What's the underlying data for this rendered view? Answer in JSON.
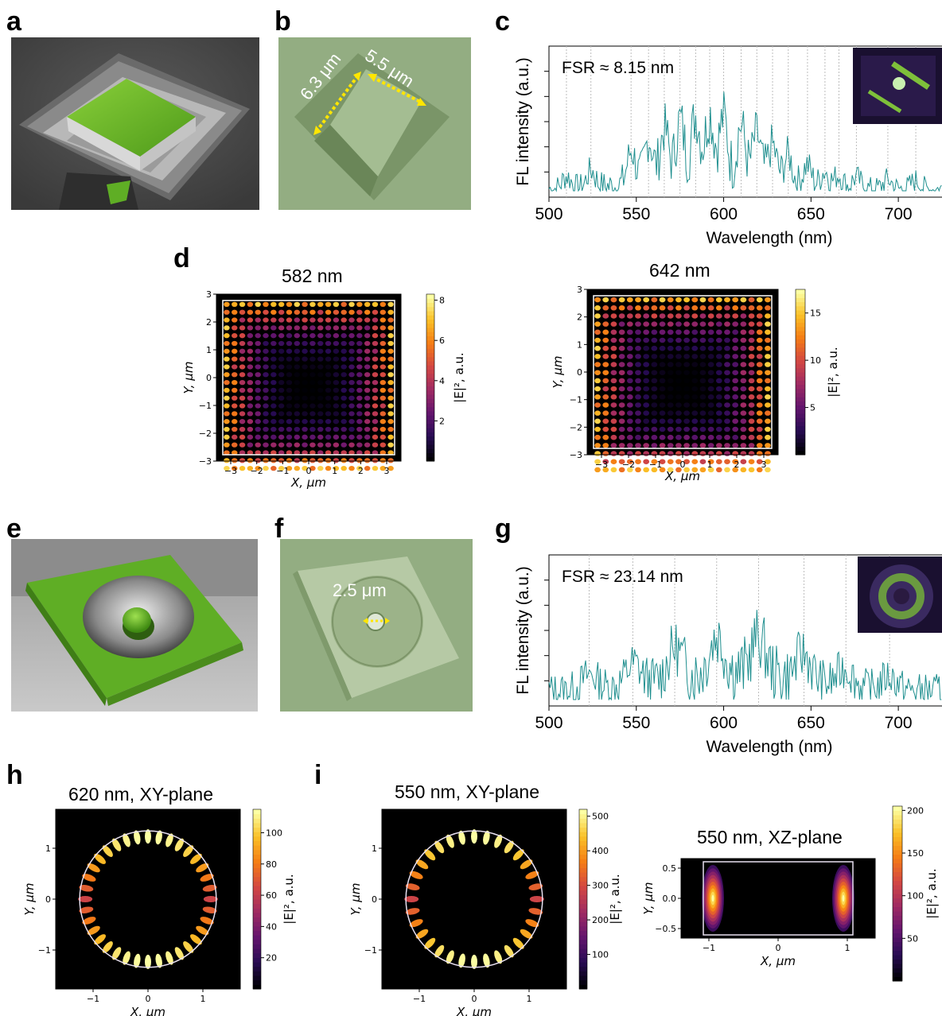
{
  "panel_labels": {
    "a": "a",
    "b": "b",
    "c": "c",
    "d": "d",
    "e": "e",
    "f": "f",
    "g": "g",
    "h": "h",
    "i": "i"
  },
  "images": {
    "b_dim_left": "6.3 μm",
    "b_dim_right": "5.5 μm",
    "f_dim": "2.5 μm"
  },
  "colors": {
    "sem_green": "#6fbf2a",
    "micro_green": "#93ad82",
    "spectrum": "#1f8f8f",
    "frame": "#ffffff"
  },
  "chart_data": [
    {
      "id": "c",
      "type": "line",
      "annotation": "FSR ≈ 8.15 nm",
      "xlabel": "Wavelength (nm)",
      "ylabel": "FL intensity (a.u.)",
      "xticks": [
        "500",
        "550",
        "600",
        "650",
        "700"
      ],
      "xlim": [
        500,
        725
      ],
      "peaks": [
        510,
        524,
        547,
        557,
        566,
        575,
        584,
        592,
        600,
        610,
        619,
        628,
        637,
        648,
        658,
        666,
        676,
        694,
        710
      ],
      "series": [
        {
          "values_envelope_center": 590,
          "values_envelope_width": 50,
          "max": 1.0
        }
      ]
    },
    {
      "id": "d1",
      "type": "heatmap",
      "title": "582 nm",
      "xlabel": "X, μm",
      "ylabel": "Y, μm",
      "cbar_label": "|E|², a.u.",
      "xticks": [
        "−3",
        "−2",
        "−1",
        "0",
        "1",
        "2",
        "3"
      ],
      "yticks": [
        "3",
        "2",
        "1",
        "0",
        "−1",
        "−2",
        "−3"
      ],
      "cbar_ticks": [
        "8",
        "6",
        "4",
        "2"
      ],
      "cbar_max": 8.3
    },
    {
      "id": "d2",
      "type": "heatmap",
      "title": "642 nm",
      "xlabel": "X, μm",
      "ylabel": "Y, μm",
      "cbar_label": "|E|², a.u.",
      "xticks": [
        "−3",
        "−2",
        "−1",
        "0",
        "1",
        "2",
        "3"
      ],
      "yticks": [
        "3",
        "2",
        "1",
        "0",
        "−1",
        "−2",
        "−3"
      ],
      "cbar_ticks": [
        "15",
        "10",
        "5"
      ],
      "cbar_max": 17.5
    },
    {
      "id": "g",
      "type": "line",
      "annotation": "FSR ≈ 23.14 nm",
      "xlabel": "Wavelength (nm)",
      "ylabel": "FL intensity (a.u.)",
      "xticks": [
        "500",
        "550",
        "600",
        "650",
        "700"
      ],
      "xlim": [
        500,
        725
      ],
      "peaks": [
        523,
        548,
        572,
        596,
        620,
        646,
        670,
        695
      ]
    },
    {
      "id": "h",
      "type": "heatmap",
      "title": "620 nm, XY-plane",
      "xlabel": "X, μm",
      "ylabel": "Y, μm",
      "cbar_label": "|E|², a.u.",
      "xticks": [
        "−1",
        "0",
        "1"
      ],
      "yticks": [
        "1",
        "0",
        "−1"
      ],
      "cbar_ticks": [
        "100",
        "80",
        "60",
        "40",
        "20"
      ],
      "cbar_max": 115
    },
    {
      "id": "i1",
      "type": "heatmap",
      "title": "550 nm, XY-plane",
      "xlabel": "X, μm",
      "ylabel": "Y, μm",
      "cbar_label": "|E|², a.u.",
      "xticks": [
        "−1",
        "0",
        "1"
      ],
      "yticks": [
        "1",
        "0",
        "−1"
      ],
      "cbar_ticks": [
        "500",
        "400",
        "300",
        "200",
        "100"
      ],
      "cbar_max": 520
    },
    {
      "id": "i2",
      "type": "heatmap",
      "title": "550 nm, XZ-plane",
      "xlabel": "X, μm",
      "ylabel": "Y, μm",
      "cbar_label": "|E|², a.u.",
      "xticks": [
        "−1",
        "0",
        "1"
      ],
      "yticks": [
        "0.5",
        "0.0",
        "−0.5"
      ],
      "cbar_ticks": [
        "200",
        "150",
        "100",
        "50"
      ],
      "cbar_max": 205
    }
  ]
}
